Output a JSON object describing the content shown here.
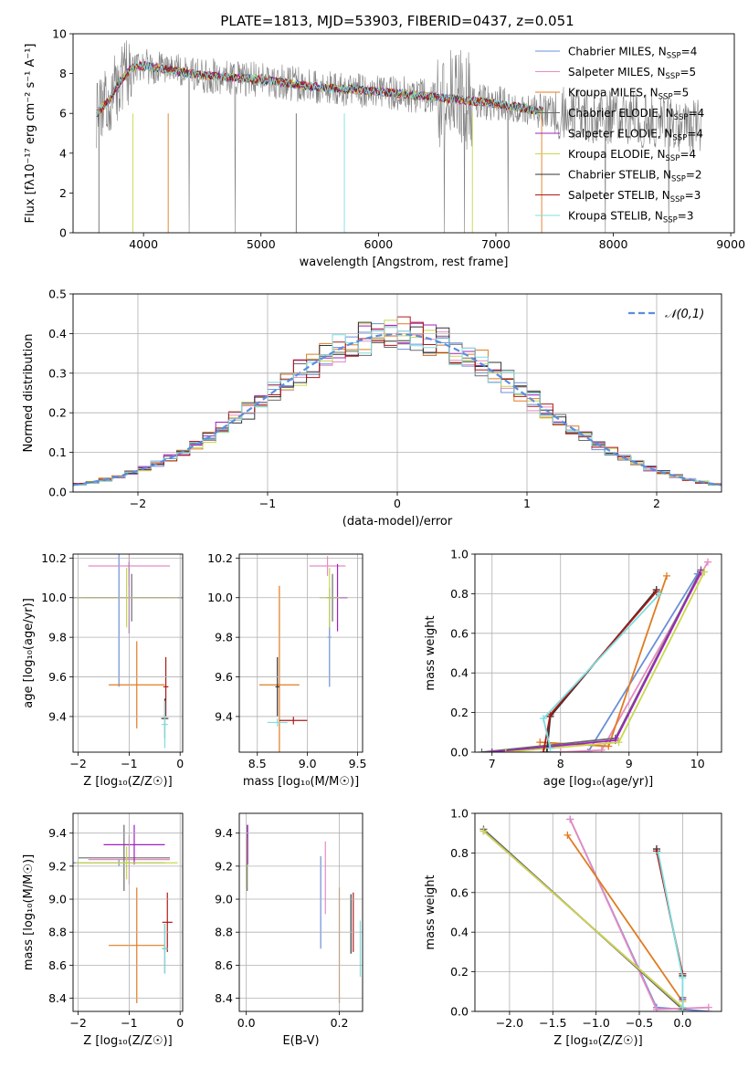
{
  "title": "PLATE=1813, MJD=53903, FIBERID=0437, z=0.051",
  "colors": {
    "Chabrier MILES": "#6a8fd8",
    "Salpeter MILES": "#e78ac3",
    "Kroupa MILES": "#e07b20",
    "Chabrier ELODIE": "#6b6b6b",
    "Salpeter ELODIE": "#a020c0",
    "Kroupa ELODIE": "#c8d84a",
    "Chabrier STELIB": "#333333",
    "Salpeter STELIB": "#b01818",
    "Kroupa STELIB": "#7ddede",
    "data": "#808080",
    "gauss": "#5b8de0",
    "green": "#4ca64c"
  },
  "chart_data": [
    {
      "id": "spectrum",
      "type": "line",
      "xlabel": "wavelength [Angstrom, rest frame]",
      "ylabel": "Flux [fλ10⁻¹⁷ erg cm⁻² s⁻¹ A⁻¹]",
      "xlim": [
        3400,
        9030
      ],
      "ylim": [
        0,
        10
      ],
      "xticks": [
        4000,
        5000,
        6000,
        7000,
        8000,
        9000
      ],
      "yticks": [
        0,
        2,
        4,
        6,
        8,
        10
      ],
      "grid": false,
      "legend_position": "upper-right",
      "legend": [
        {
          "label": "Chabrier MILES, N_SSP=4",
          "label_text": "Chabrier MILES, N",
          "sub": "SSP",
          "tail": "=4",
          "model": "Chabrier MILES"
        },
        {
          "label": "Salpeter MILES, N_SSP=5",
          "label_text": "Salpeter MILES, N",
          "sub": "SSP",
          "tail": "=5",
          "model": "Salpeter MILES"
        },
        {
          "label": "Kroupa MILES, N_SSP=5",
          "label_text": "Kroupa MILES, N",
          "sub": "SSP",
          "tail": "=5",
          "model": "Kroupa MILES"
        },
        {
          "label": "Chabrier ELODIE, N_SSP=4",
          "label_text": "Chabrier ELODIE, N",
          "sub": "SSP",
          "tail": "=4",
          "model": "Chabrier ELODIE"
        },
        {
          "label": "Salpeter ELODIE, N_SSP=4",
          "label_text": "Salpeter ELODIE, N",
          "sub": "SSP",
          "tail": "=4",
          "model": "Salpeter ELODIE"
        },
        {
          "label": "Kroupa ELODIE, N_SSP=4",
          "label_text": "Kroupa ELODIE, N",
          "sub": "SSP",
          "tail": "=4",
          "model": "Kroupa ELODIE"
        },
        {
          "label": "Chabrier STELIB, N_SSP=2",
          "label_text": "Chabrier STELIB, N",
          "sub": "SSP",
          "tail": "=2",
          "model": "Chabrier STELIB"
        },
        {
          "label": "Salpeter STELIB, N_SSP=3",
          "label_text": "Salpeter STELIB, N",
          "sub": "SSP",
          "tail": "=3",
          "model": "Salpeter STELIB"
        },
        {
          "label": "Kroupa STELIB, N_SSP=3",
          "label_text": "Kroupa STELIB, N",
          "sub": "SSP",
          "tail": "=3",
          "model": "Kroupa STELIB"
        }
      ],
      "continuum": [
        {
          "x": 3600,
          "y": 6.0
        },
        {
          "x": 3700,
          "y": 6.6
        },
        {
          "x": 3800,
          "y": 7.6
        },
        {
          "x": 3900,
          "y": 8.3
        },
        {
          "x": 4000,
          "y": 8.4
        },
        {
          "x": 4200,
          "y": 8.2
        },
        {
          "x": 4500,
          "y": 7.9
        },
        {
          "x": 5000,
          "y": 7.7
        },
        {
          "x": 5500,
          "y": 7.3
        },
        {
          "x": 6000,
          "y": 7.1
        },
        {
          "x": 6500,
          "y": 6.8
        },
        {
          "x": 7000,
          "y": 6.5
        },
        {
          "x": 7500,
          "y": 6.0
        },
        {
          "x": 8000,
          "y": 5.8
        },
        {
          "x": 8500,
          "y": 5.5
        },
        {
          "x": 8750,
          "y": 5.3
        }
      ],
      "model_range": [
        3600,
        7400
      ],
      "data_range": [
        3600,
        8750
      ]
    },
    {
      "id": "residuals",
      "type": "histogram",
      "xlabel": "(data-model)/error",
      "ylabel": "Normed distribution",
      "xlim": [
        -2.5,
        2.5
      ],
      "ylim": [
        0,
        0.5
      ],
      "xticks": [
        -2,
        -1,
        0,
        1,
        2
      ],
      "yticks": [
        0.0,
        0.1,
        0.2,
        0.3,
        0.4,
        0.5
      ],
      "grid": true,
      "legend_position": "upper-right",
      "legend": [
        {
          "label": "𝒩(0,1)"
        }
      ],
      "bin_width": 0.1
    },
    {
      "id": "Z-age",
      "type": "scatter",
      "xlabel": "Z [log₁₀(Z/Z☉)]",
      "ylabel": "age  [log₁₀(age/yr)]",
      "xlim": [
        -2.1,
        0.05
      ],
      "ylim": [
        9.22,
        10.22
      ],
      "xticks": [
        -2,
        -1,
        0
      ],
      "yticks": [
        9.4,
        9.6,
        9.8,
        10.0,
        10.2
      ],
      "grid": true,
      "points": [
        {
          "model": "Chabrier MILES",
          "x": -1.2,
          "y": 10.0,
          "xerr": 0.9,
          "yerr": 0.45
        },
        {
          "model": "Salpeter MILES",
          "x": -1.0,
          "y": 10.16,
          "xerr": 0.8,
          "yerr": 0.1
        },
        {
          "model": "Kroupa MILES",
          "x": -0.85,
          "y": 9.56,
          "xerr": 0.55,
          "yerr": 0.22
        },
        {
          "model": "Chabrier ELODIE",
          "x": -0.95,
          "y": 10.0,
          "xerr": 1.1,
          "yerr": 0.12
        },
        {
          "model": "Salpeter ELODIE",
          "x": -1.0,
          "y": 10.0,
          "xerr": 0.9,
          "yerr": 0.18
        },
        {
          "model": "Kroupa ELODIE",
          "x": -1.05,
          "y": 10.0,
          "xerr": 1.0,
          "yerr": 0.15
        },
        {
          "model": "Chabrier STELIB",
          "x": -0.3,
          "y": 9.39,
          "xerr": 0.07,
          "yerr": 0.1
        },
        {
          "model": "Salpeter STELIB",
          "x": -0.28,
          "y": 9.55,
          "xerr": 0.05,
          "yerr": 0.15
        },
        {
          "model": "Kroupa STELIB",
          "x": -0.3,
          "y": 9.36,
          "xerr": 0.06,
          "yerr": 0.12
        }
      ]
    },
    {
      "id": "mass-age",
      "type": "scatter",
      "xlabel": "mass [log₁₀(M/M☉)]",
      "ylabel": "",
      "xlim": [
        8.32,
        9.55
      ],
      "ylim": [
        9.22,
        10.22
      ],
      "xticks": [
        8.5,
        9.0,
        9.5
      ],
      "yticks": [
        9.4,
        9.6,
        9.8,
        10.0,
        10.2
      ],
      "grid": true,
      "points": [
        {
          "model": "Chabrier MILES",
          "x": 9.22,
          "y": 9.8,
          "xerr": 0.02,
          "yerr": 0.25
        },
        {
          "model": "Salpeter MILES",
          "x": 9.2,
          "y": 10.16,
          "xerr": 0.18,
          "yerr": 0.05
        },
        {
          "model": "Kroupa MILES",
          "x": 8.72,
          "y": 9.56,
          "xerr": 0.2,
          "yerr": 0.5
        },
        {
          "model": "Chabrier ELODIE",
          "x": 9.25,
          "y": 10.0,
          "xerr": 0.06,
          "yerr": 0.12
        },
        {
          "model": "Salpeter ELODIE",
          "x": 9.3,
          "y": 10.0,
          "xerr": 0.1,
          "yerr": 0.17
        },
        {
          "model": "Kroupa ELODIE",
          "x": 9.22,
          "y": 10.0,
          "xerr": 0.1,
          "yerr": 0.15
        },
        {
          "model": "Chabrier STELIB",
          "x": 8.7,
          "y": 9.55,
          "xerr": 0.02,
          "yerr": 0.15
        },
        {
          "model": "Salpeter STELIB",
          "x": 8.86,
          "y": 9.38,
          "xerr": 0.14,
          "yerr": 0.02
        },
        {
          "model": "Kroupa STELIB",
          "x": 8.7,
          "y": 9.37,
          "xerr": 0.1,
          "yerr": 0.02
        }
      ]
    },
    {
      "id": "age-weight",
      "type": "line",
      "xlabel": "age  [log₁₀(age/yr)]",
      "ylabel": "mass weight",
      "xlim": [
        6.75,
        10.35
      ],
      "ylim": [
        0,
        1
      ],
      "xticks": [
        7,
        8,
        9,
        10
      ],
      "yticks": [
        0.0,
        0.2,
        0.4,
        0.6,
        0.8,
        1.0
      ],
      "grid": true,
      "series": [
        {
          "model": "Chabrier MILES",
          "x": [
            7.8,
            8.4,
            10.0
          ],
          "y": [
            0.0,
            0.0,
            0.9
          ]
        },
        {
          "model": "Salpeter MILES",
          "x": [
            8.0,
            8.6,
            10.15
          ],
          "y": [
            0.0,
            0.01,
            0.96
          ]
        },
        {
          "model": "Kroupa MILES",
          "x": [
            7.7,
            8.7,
            9.55
          ],
          "y": [
            0.05,
            0.03,
            0.89
          ]
        },
        {
          "model": "Chabrier ELODIE",
          "x": [
            6.85,
            8.8,
            10.05
          ],
          "y": [
            0.0,
            0.07,
            0.92
          ]
        },
        {
          "model": "Salpeter ELODIE",
          "x": [
            7.0,
            8.8,
            10.05
          ],
          "y": [
            0.0,
            0.06,
            0.91
          ]
        },
        {
          "model": "Kroupa ELODIE",
          "x": [
            7.2,
            8.85,
            10.1
          ],
          "y": [
            0.0,
            0.05,
            0.91
          ]
        },
        {
          "model": "Chabrier STELIB",
          "x": [
            7.8,
            7.85,
            9.4
          ],
          "y": [
            0.0,
            0.18,
            0.82
          ]
        },
        {
          "model": "Salpeter STELIB",
          "x": [
            7.75,
            7.85,
            9.4
          ],
          "y": [
            0.0,
            0.19,
            0.81
          ]
        },
        {
          "model": "Kroupa STELIB",
          "x": [
            7.85,
            7.75,
            9.45
          ],
          "y": [
            0.02,
            0.17,
            0.8
          ]
        }
      ]
    },
    {
      "id": "Z-mass",
      "type": "scatter",
      "xlabel": "Z [log₁₀(Z/Z☉)]",
      "ylabel": "mass [log₁₀(M/M☉)]",
      "xlim": [
        -2.1,
        0.05
      ],
      "ylim": [
        8.32,
        9.52
      ],
      "xticks": [
        -2,
        -1,
        0
      ],
      "yticks": [
        8.4,
        8.6,
        8.8,
        9.0,
        9.2,
        9.4
      ],
      "grid": true,
      "points": [
        {
          "model": "Chabrier MILES",
          "x": -1.2,
          "y": 9.22,
          "xerr": 0.9,
          "yerr": 0.02
        },
        {
          "model": "Salpeter MILES",
          "x": -1.0,
          "y": 9.24,
          "xerr": 0.8,
          "yerr": 0.15
        },
        {
          "model": "Kroupa MILES",
          "x": -0.85,
          "y": 8.72,
          "xerr": 0.55,
          "yerr": 0.35
        },
        {
          "model": "Chabrier ELODIE",
          "x": -1.1,
          "y": 9.25,
          "xerr": 0.9,
          "yerr": 0.2
        },
        {
          "model": "Salpeter ELODIE",
          "x": -0.9,
          "y": 9.33,
          "xerr": 0.6,
          "yerr": 0.12
        },
        {
          "model": "Kroupa ELODIE",
          "x": -1.05,
          "y": 9.22,
          "xerr": 1.0,
          "yerr": 0.1
        },
        {
          "model": "Chabrier STELIB",
          "x": -0.3,
          "y": 8.7,
          "xerr": 0.04,
          "yerr": 0.15
        },
        {
          "model": "Salpeter STELIB",
          "x": -0.25,
          "y": 8.86,
          "xerr": 0.1,
          "yerr": 0.18
        },
        {
          "model": "Kroupa STELIB",
          "x": -0.3,
          "y": 8.7,
          "xerr": 0.06,
          "yerr": 0.15
        }
      ]
    },
    {
      "id": "ebv-mass",
      "type": "scatter",
      "xlabel": "E(B-V)",
      "ylabel": "",
      "xlim": [
        -0.015,
        0.25
      ],
      "ylim": [
        8.32,
        9.52
      ],
      "xticks": [
        0.0,
        0.2
      ],
      "yticks": [
        8.4,
        8.6,
        8.8,
        9.0,
        9.2,
        9.4
      ],
      "grid": true,
      "points": [
        {
          "model": "Chabrier MILES",
          "x": 0.16,
          "y": 8.98,
          "xerr": 0,
          "yerr": 0.28
        },
        {
          "model": "Salpeter MILES",
          "x": 0.17,
          "y": 9.13,
          "xerr": 0,
          "yerr": 0.22
        },
        {
          "model": "Kroupa MILES",
          "x": 0.2,
          "y": 8.72,
          "xerr": 0,
          "yerr": 0.35
        },
        {
          "model": "Chabrier ELODIE",
          "x": 0.002,
          "y": 9.25,
          "xerr": 0,
          "yerr": 0.2
        },
        {
          "model": "Salpeter ELODIE",
          "x": 0.003,
          "y": 9.33,
          "xerr": 0,
          "yerr": 0.12
        },
        {
          "model": "Kroupa ELODIE",
          "x": 0.0,
          "y": 9.22,
          "xerr": 0,
          "yerr": 0.15
        },
        {
          "model": "Chabrier STELIB",
          "x": 0.225,
          "y": 8.85,
          "xerr": 0,
          "yerr": 0.18
        },
        {
          "model": "Salpeter STELIB",
          "x": 0.23,
          "y": 8.86,
          "xerr": 0,
          "yerr": 0.18
        },
        {
          "model": "Kroupa STELIB",
          "x": 0.245,
          "y": 8.7,
          "xerr": 0,
          "yerr": 0.17
        }
      ]
    },
    {
      "id": "Z-weight",
      "type": "line",
      "xlabel": "Z [log₁₀(Z/Z☉)]",
      "ylabel": "mass weight",
      "xlim": [
        -2.4,
        0.45
      ],
      "ylim": [
        0,
        1
      ],
      "xticks": [
        -2.0,
        -1.5,
        -1.0,
        -0.5,
        0.0
      ],
      "yticks": [
        0.0,
        0.2,
        0.4,
        0.6,
        0.8,
        1.0
      ],
      "grid": true,
      "series": [
        {
          "model": "Chabrier MILES",
          "x": [
            -1.3,
            -0.3,
            0.3
          ],
          "y": [
            0.97,
            0.02,
            0.0
          ]
        },
        {
          "model": "Salpeter MILES",
          "x": [
            -1.3,
            -0.3,
            0.3
          ],
          "y": [
            0.97,
            0.01,
            0.02
          ]
        },
        {
          "model": "Kroupa MILES",
          "x": [
            -1.33,
            0.0
          ],
          "y": [
            0.89,
            0.05
          ]
        },
        {
          "model": "Chabrier ELODIE",
          "x": [
            -2.3,
            0.0,
            0.0
          ],
          "y": [
            0.92,
            0.01,
            0.07
          ]
        },
        {
          "model": "Salpeter ELODIE",
          "x": [
            -2.3,
            0.0,
            0.0
          ],
          "y": [
            0.91,
            0.02,
            0.06
          ]
        },
        {
          "model": "Kroupa ELODIE",
          "x": [
            -2.3,
            0.0,
            0.0
          ],
          "y": [
            0.91,
            0.02,
            0.05
          ]
        },
        {
          "model": "Chabrier STELIB",
          "x": [
            -0.3,
            0.0
          ],
          "y": [
            0.82,
            0.18
          ]
        },
        {
          "model": "Salpeter STELIB",
          "x": [
            -0.3,
            0.0
          ],
          "y": [
            0.81,
            0.19
          ]
        },
        {
          "model": "Kroupa STELIB",
          "x": [
            -0.28,
            0.0,
            0.0
          ],
          "y": [
            0.8,
            0.17,
            0.02
          ]
        }
      ]
    }
  ]
}
